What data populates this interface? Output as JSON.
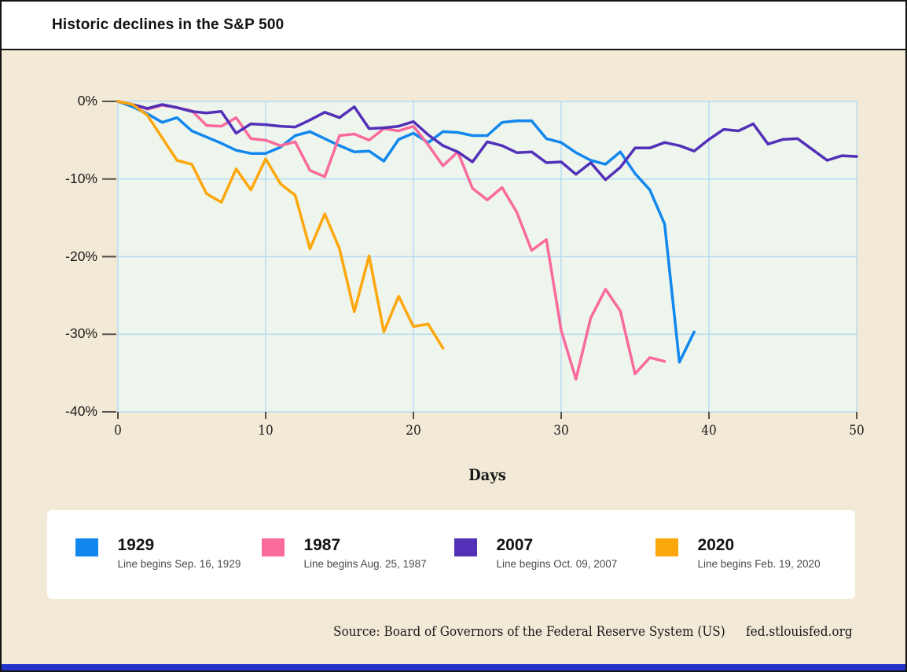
{
  "header": {
    "title": "Historic declines in the S&P 500"
  },
  "chart_data": {
    "type": "line",
    "title": "Historic declines in the S&P 500",
    "xlabel": "Days",
    "ylabel": "",
    "xlim": [
      0,
      50
    ],
    "ylim": [
      -40,
      0
    ],
    "x_ticks": [
      "0",
      "10",
      "20",
      "30",
      "40",
      "50"
    ],
    "y_ticks": [
      "0%",
      "-10%",
      "-20%",
      "-30%",
      "-40%"
    ],
    "grid": true,
    "legend_position": "bottom",
    "plot_bg": "#EEF5EC",
    "grid_color": "#B7DCF2",
    "series": [
      {
        "name": "1929",
        "begins": "Line begins Sep. 16, 1929",
        "color": "#1287EE",
        "x_start": 0,
        "values": [
          0,
          -0.7,
          -1.6,
          -2.7,
          -2.1,
          -3.8,
          -4.6,
          -5.4,
          -6.3,
          -6.7,
          -6.7,
          -5.9,
          -4.4,
          -3.9,
          -4.8,
          -5.7,
          -6.5,
          -6.4,
          -7.7,
          -4.9,
          -4.1,
          -5.3,
          -3.9,
          -4.0,
          -4.4,
          -4.4,
          -2.7,
          -2.5,
          -2.5,
          -4.8,
          -5.3,
          -6.6,
          -7.6,
          -8.1,
          -6.5,
          -9.3,
          -11.4,
          -15.8,
          -33.6,
          -29.7
        ]
      },
      {
        "name": "1987",
        "begins": "Line begins Aug. 25, 1987",
        "color": "#F96A9D",
        "x_start": 0,
        "values": [
          0,
          -0.4,
          -1.0,
          -0.5,
          -0.8,
          -1.2,
          -3.1,
          -3.2,
          -2.1,
          -4.8,
          -5.0,
          -5.7,
          -5.2,
          -8.9,
          -9.7,
          -4.4,
          -4.2,
          -5.0,
          -3.5,
          -3.8,
          -3.2,
          -5.6,
          -8.3,
          -6.5,
          -11.2,
          -12.7,
          -11.1,
          -14.3,
          -19.2,
          -17.8,
          -29.5,
          -35.8,
          -27.9,
          -24.2,
          -27.0,
          -35.1,
          -33.0,
          -33.5
        ]
      },
      {
        "name": "2007",
        "begins": "Line begins Oct. 09, 2007",
        "color": "#5230B8",
        "x_start": 0,
        "values": [
          0,
          -0.4,
          -0.9,
          -0.4,
          -0.8,
          -1.3,
          -1.5,
          -1.3,
          -4.1,
          -2.9,
          -3.0,
          -3.2,
          -3.3,
          -2.4,
          -1.4,
          -2.1,
          -0.7,
          -3.5,
          -3.4,
          -3.2,
          -2.6,
          -4.3,
          -5.7,
          -6.5,
          -7.8,
          -5.2,
          -5.7,
          -6.6,
          -6.5,
          -7.9,
          -7.8,
          -9.4,
          -7.9,
          -10.1,
          -8.5,
          -6.0,
          -6.0,
          -5.3,
          -5.7,
          -6.4,
          -4.9,
          -3.6,
          -3.8,
          -2.9,
          -5.5,
          -4.9,
          -4.8,
          -6.2,
          -7.6,
          -7.0,
          -7.1
        ]
      },
      {
        "name": "2020",
        "begins": "Line begins Feb. 19, 2020",
        "color": "#FCA70D",
        "x_start": 0,
        "values": [
          0,
          -0.4,
          -1.8,
          -4.7,
          -7.6,
          -8.1,
          -11.9,
          -13.0,
          -8.7,
          -11.4,
          -7.4,
          -10.6,
          -12.1,
          -19.0,
          -14.5,
          -19.0,
          -27.1,
          -19.9,
          -29.7,
          -25.1,
          -29.0,
          -28.7,
          -31.8
        ]
      }
    ]
  },
  "footer": {
    "source": "Source: Board of Governors of the Federal Reserve System (US)",
    "site": "fed.stlouisfed.org"
  },
  "colors": {
    "background": "#F2EAD7",
    "header_bg": "#FFFFFF",
    "bottom_bar": "#2433CC",
    "tick": "#55524a"
  }
}
